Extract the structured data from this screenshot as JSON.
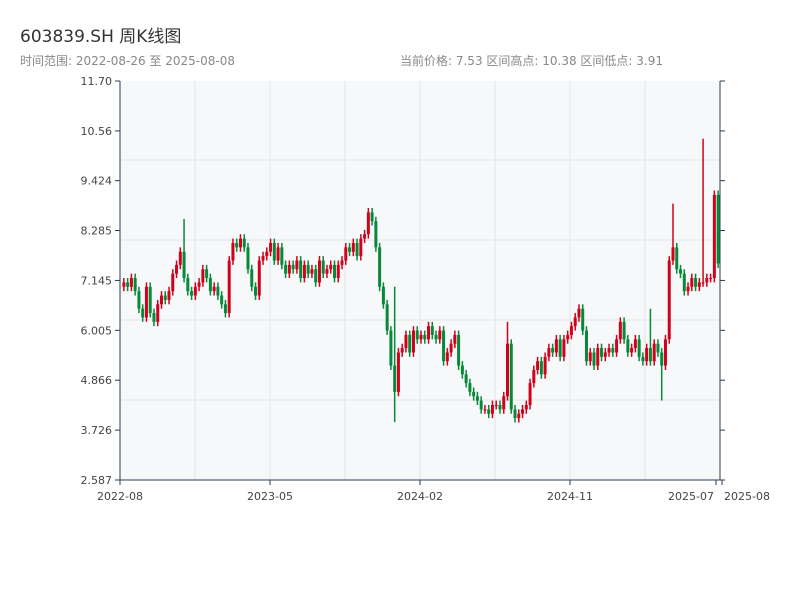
{
  "title": "603839.SH 周K线图",
  "subtitle": "时间范围: 2022-08-26 至 2025-08-08",
  "stats": "当前价格: 7.53  区间高点: 10.38  区间低点: 3.91",
  "chart_data": {
    "type": "candlestick",
    "title": "603839.SH 周K线图",
    "ylim": [
      2.587,
      11.7
    ],
    "yticks": [
      "11.70",
      "10.56",
      "9.424",
      "8.285",
      "7.145",
      "6.005",
      "4.866",
      "3.726",
      "2.587"
    ],
    "xticks": [
      "2022-08",
      "2023-05",
      "2024-02",
      "2024-11",
      "2025-07",
      "2025-08"
    ],
    "grid": true,
    "colors": {
      "up": "#d0021b",
      "down": "#07893a",
      "plot_bg": "#f7f8fa",
      "axis": "#2c3e50"
    },
    "start_open": 7.0,
    "close": [
      7.1,
      7.0,
      7.2,
      6.9,
      6.5,
      6.3,
      7.0,
      6.4,
      6.2,
      6.6,
      6.8,
      6.7,
      6.9,
      7.3,
      7.5,
      7.8,
      7.2,
      6.9,
      6.8,
      7.0,
      7.1,
      7.4,
      7.2,
      6.9,
      7.0,
      6.8,
      6.6,
      6.4,
      7.6,
      8.0,
      7.9,
      8.1,
      7.9,
      7.4,
      7.0,
      6.8,
      7.6,
      7.7,
      7.8,
      8.0,
      7.6,
      7.9,
      7.5,
      7.3,
      7.5,
      7.4,
      7.6,
      7.2,
      7.5,
      7.3,
      7.4,
      7.1,
      7.6,
      7.3,
      7.4,
      7.5,
      7.2,
      7.5,
      7.6,
      7.9,
      7.8,
      8.0,
      7.7,
      8.1,
      8.2,
      8.7,
      8.5,
      7.9,
      7.0,
      6.6,
      6.0,
      5.2,
      4.6,
      5.5,
      5.6,
      5.9,
      5.5,
      6.0,
      5.8,
      5.9,
      5.8,
      6.1,
      5.9,
      5.8,
      6.0,
      5.3,
      5.5,
      5.7,
      5.9,
      5.2,
      5.0,
      4.8,
      4.6,
      4.5,
      4.4,
      4.2,
      4.2,
      4.1,
      4.3,
      4.3,
      4.2,
      4.5,
      5.7,
      4.2,
      4.0,
      4.1,
      4.2,
      4.3,
      4.8,
      5.1,
      5.3,
      5.0,
      5.4,
      5.6,
      5.5,
      5.8,
      5.4,
      5.8,
      5.9,
      6.1,
      6.3,
      6.5,
      6.0,
      5.3,
      5.5,
      5.2,
      5.6,
      5.4,
      5.5,
      5.6,
      5.5,
      5.8,
      6.2,
      5.8,
      5.5,
      5.6,
      5.8,
      5.4,
      5.3,
      5.6,
      5.3,
      5.7,
      5.5,
      5.2,
      5.8,
      7.6,
      7.9,
      7.4,
      7.3,
      6.9,
      7.0,
      7.2,
      7.0,
      7.1,
      7.1,
      7.2,
      7.2,
      9.1,
      7.53
    ],
    "high_overrides": {
      "16": 8.55,
      "72": 7.0,
      "102": 6.2,
      "140": 6.5,
      "146": 8.9,
      "154": 10.38
    },
    "low_overrides": {
      "72": 3.91,
      "143": 4.4
    }
  }
}
